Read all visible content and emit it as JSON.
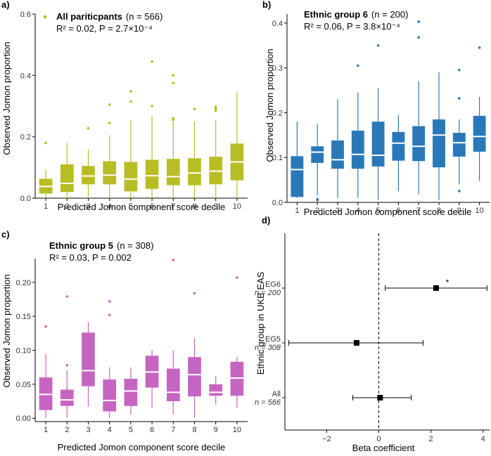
{
  "chart_data": [
    {
      "type": "boxplot",
      "panel_label": "a)",
      "color": "#b8bd24",
      "title_bold": "All pariticpants",
      "title_rest": "(n = 566)",
      "stats": "R² = 0.02, P = 2.7×10⁻⁴",
      "xlabel": "Predicted Jomon component score decile",
      "ylabel": "Observed Jomon proportion",
      "ylim": [
        0,
        0.6
      ],
      "yticks": [
        0.0,
        0.2,
        0.4,
        0.6
      ],
      "ytick_labels": [
        "0.0",
        "0.2",
        "0.4",
        "0.6"
      ],
      "categories": [
        "1",
        "2",
        "3",
        "4",
        "5",
        "6",
        "7",
        "8",
        "9",
        "10"
      ],
      "boxes": [
        {
          "whislo": 0.003,
          "q1": 0.015,
          "med": 0.038,
          "q3": 0.063,
          "whishi": 0.092,
          "outliers": [
            0.18
          ]
        },
        {
          "whislo": 0.0,
          "q1": 0.02,
          "med": 0.048,
          "q3": 0.11,
          "whishi": 0.18,
          "outliers": []
        },
        {
          "whislo": 0.005,
          "q1": 0.045,
          "med": 0.072,
          "q3": 0.105,
          "whishi": 0.158,
          "outliers": [
            0.228
          ]
        },
        {
          "whislo": 0.0,
          "q1": 0.045,
          "med": 0.075,
          "q3": 0.12,
          "whishi": 0.205,
          "outliers": [
            0.245,
            0.305
          ]
        },
        {
          "whislo": 0.0,
          "q1": 0.022,
          "med": 0.062,
          "q3": 0.118,
          "whishi": 0.255,
          "outliers": [
            0.315,
            0.348
          ]
        },
        {
          "whislo": 0.0,
          "q1": 0.03,
          "med": 0.073,
          "q3": 0.125,
          "whishi": 0.268,
          "outliers": [
            0.3,
            0.445
          ]
        },
        {
          "whislo": 0.0,
          "q1": 0.042,
          "med": 0.07,
          "q3": 0.128,
          "whishi": 0.248,
          "outliers": [
            0.255,
            0.26,
            0.375,
            0.4
          ]
        },
        {
          "whislo": 0.0,
          "q1": 0.042,
          "med": 0.082,
          "q3": 0.13,
          "whishi": 0.25,
          "outliers": [
            0.29
          ]
        },
        {
          "whislo": 0.0,
          "q1": 0.045,
          "med": 0.088,
          "q3": 0.135,
          "whishi": 0.255,
          "outliers": [
            0.285,
            0.292,
            0.298
          ]
        },
        {
          "whislo": 0.0,
          "q1": 0.058,
          "med": 0.118,
          "q3": 0.178,
          "whishi": 0.345,
          "outliers": []
        }
      ]
    },
    {
      "type": "boxplot",
      "panel_label": "b)",
      "color": "#2a78b8",
      "title_bold": "Ethnic group 6",
      "title_rest": "(n = 200)",
      "stats": "R² = 0.06, P = 3.8×10⁻⁴",
      "xlabel": "Predicted Jomon component score decile",
      "ylabel": "Observed Jomon proportion",
      "ylim": [
        0,
        0.42
      ],
      "yticks": [
        0.0,
        0.1,
        0.2,
        0.3,
        0.4
      ],
      "ytick_labels": [
        "0.0",
        "0.1",
        "0.2",
        "0.3",
        "0.4"
      ],
      "categories": [
        "1",
        "2",
        "3",
        "4",
        "5",
        "6",
        "7",
        "8",
        "9",
        "10"
      ],
      "boxes": [
        {
          "whislo": 0.01,
          "q1": 0.012,
          "med": 0.073,
          "q3": 0.103,
          "whishi": 0.18,
          "outliers": []
        },
        {
          "whislo": 0.015,
          "q1": 0.088,
          "med": 0.112,
          "q3": 0.125,
          "whishi": 0.175,
          "outliers": [
            0.005,
            0.007
          ]
        },
        {
          "whislo": 0.01,
          "q1": 0.075,
          "med": 0.095,
          "q3": 0.138,
          "whishi": 0.23,
          "outliers": []
        },
        {
          "whislo": 0.01,
          "q1": 0.075,
          "med": 0.107,
          "q3": 0.16,
          "whishi": 0.245,
          "outliers": [
            0.305
          ]
        },
        {
          "whislo": 0.005,
          "q1": 0.08,
          "med": 0.105,
          "q3": 0.18,
          "whishi": 0.255,
          "outliers": [
            0.35
          ]
        },
        {
          "whislo": 0.025,
          "q1": 0.093,
          "med": 0.132,
          "q3": 0.157,
          "whishi": 0.195,
          "outliers": []
        },
        {
          "whislo": 0.018,
          "q1": 0.092,
          "med": 0.125,
          "q3": 0.17,
          "whishi": 0.27,
          "outliers": [
            0.368,
            0.403
          ]
        },
        {
          "whislo": 0.005,
          "q1": 0.078,
          "med": 0.15,
          "q3": 0.185,
          "whishi": 0.29,
          "outliers": []
        },
        {
          "whislo": 0.04,
          "q1": 0.102,
          "med": 0.133,
          "q3": 0.155,
          "whishi": 0.185,
          "outliers": [
            0.025,
            0.232,
            0.295
          ]
        },
        {
          "whislo": 0.048,
          "q1": 0.113,
          "med": 0.147,
          "q3": 0.193,
          "whishi": 0.235,
          "outliers": [
            0.345
          ]
        }
      ]
    },
    {
      "type": "boxplot",
      "panel_label": "c)",
      "color": "#c665c1",
      "title_bold": "Ethnic group 5",
      "title_rest": "(n =   308)",
      "stats": "R² = 0.03, P = 0.002",
      "xlabel": "Predicted Jomon component score decile",
      "ylabel": "Observed Jomon proportion",
      "ylim": [
        -0.005,
        0.235
      ],
      "yticks": [
        0.0,
        0.05,
        0.1,
        0.15,
        0.2
      ],
      "ytick_labels": [
        "0.00",
        "0.05",
        "0.10",
        "0.15",
        "0.20"
      ],
      "categories": [
        "1",
        "2",
        "3",
        "4",
        "5",
        "6",
        "7",
        "8",
        "9",
        "10"
      ],
      "boxes": [
        {
          "whislo": 0.0,
          "q1": 0.012,
          "med": 0.035,
          "q3": 0.06,
          "whishi": 0.095,
          "outliers": [
            0.135
          ]
        },
        {
          "whislo": 0.0,
          "q1": 0.018,
          "med": 0.027,
          "q3": 0.042,
          "whishi": 0.07,
          "outliers": [
            0.078,
            0.179
          ]
        },
        {
          "whislo": 0.017,
          "q1": 0.047,
          "med": 0.07,
          "q3": 0.126,
          "whishi": 0.142,
          "outliers": []
        },
        {
          "whislo": 0.0,
          "q1": 0.01,
          "med": 0.026,
          "q3": 0.057,
          "whishi": 0.075,
          "outliers": [
            0.152,
            0.172
          ]
        },
        {
          "whislo": 0.005,
          "q1": 0.018,
          "med": 0.04,
          "q3": 0.058,
          "whishi": 0.075,
          "outliers": []
        },
        {
          "whislo": 0.015,
          "q1": 0.045,
          "med": 0.068,
          "q3": 0.092,
          "whishi": 0.1,
          "outliers": []
        },
        {
          "whislo": 0.005,
          "q1": 0.025,
          "med": 0.038,
          "q3": 0.073,
          "whishi": 0.1,
          "outliers": [
            0.233
          ]
        },
        {
          "whislo": 0.0,
          "q1": 0.032,
          "med": 0.064,
          "q3": 0.09,
          "whishi": 0.118,
          "outliers": [
            0.184
          ]
        },
        {
          "whislo": 0.02,
          "q1": 0.033,
          "med": 0.038,
          "q3": 0.05,
          "whishi": 0.062,
          "outliers": []
        },
        {
          "whislo": 0.015,
          "q1": 0.033,
          "med": 0.059,
          "q3": 0.083,
          "whishi": 0.09,
          "outliers": [
            0.207
          ]
        }
      ]
    },
    {
      "type": "forest",
      "panel_label": "d)",
      "xlabel": "Beta coefficient",
      "ylabel": "Ethnic group in UKB EAS",
      "xlim": [
        -3.6,
        4.25
      ],
      "xticks": [
        -2,
        0,
        2,
        4
      ],
      "xtick_labels": [
        "−2",
        "0",
        "2",
        "4"
      ],
      "reference_line": 0,
      "rows": [
        {
          "name": "EG6",
          "n_label": "n = 200",
          "beta": 2.2,
          "lo": 0.25,
          "hi": 4.15,
          "significance": "*"
        },
        {
          "name": "EG5",
          "n_label": "n = 308",
          "beta": -0.85,
          "lo": -3.45,
          "hi": 1.7,
          "significance": ""
        },
        {
          "name": "All",
          "n_label": "n = 566",
          "beta": 0.05,
          "lo": -1.0,
          "hi": 1.25,
          "significance": ""
        }
      ]
    }
  ]
}
